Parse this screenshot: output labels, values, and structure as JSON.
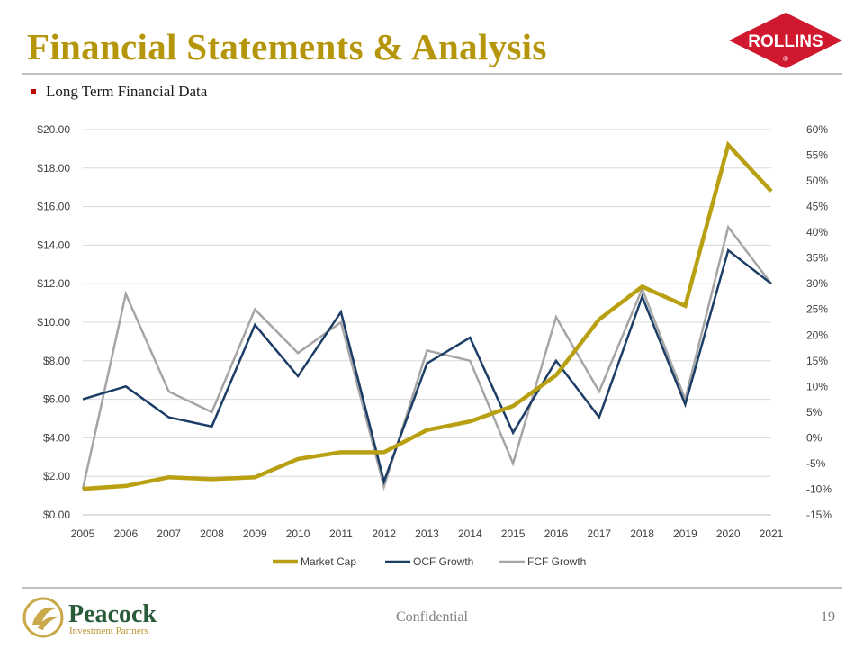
{
  "slide": {
    "title": "Financial Statements & Analysis",
    "bullet": "Long Term Financial Data",
    "logo_text": "ROLLINS",
    "logo_mark": "®",
    "footer_brand": "Peacock",
    "footer_brand_sub": "Investment Partners",
    "footer_center": "Confidential",
    "page_number": "19",
    "colors": {
      "title": "#b5950a",
      "logo_red": "#d0182f",
      "bullet": "#c00000"
    }
  },
  "chart_data": {
    "type": "line",
    "categories": [
      "2005",
      "2006",
      "2007",
      "2008",
      "2009",
      "2010",
      "2011",
      "2012",
      "2013",
      "2014",
      "2015",
      "2016",
      "2017",
      "2018",
      "2019",
      "2020",
      "2021"
    ],
    "y_left": {
      "range": [
        0,
        20
      ],
      "ticks": [
        0,
        2,
        4,
        6,
        8,
        10,
        12,
        14,
        16,
        18,
        20
      ],
      "tick_labels": [
        "$0.00",
        "$2.00",
        "$4.00",
        "$6.00",
        "$8.00",
        "$10.00",
        "$12.00",
        "$14.00",
        "$16.00",
        "$18.00",
        "$20.00"
      ]
    },
    "y_right": {
      "range": [
        -15,
        60
      ],
      "ticks": [
        -15,
        -10,
        -5,
        0,
        5,
        10,
        15,
        20,
        25,
        30,
        35,
        40,
        45,
        50,
        55,
        60
      ],
      "tick_labels": [
        "-15%",
        "-10%",
        "-5%",
        "0%",
        "5%",
        "10%",
        "15%",
        "20%",
        "25%",
        "30%",
        "35%",
        "40%",
        "45%",
        "50%",
        "55%",
        "60%"
      ]
    },
    "grid": true,
    "legend_position": "bottom",
    "series": [
      {
        "name": "Market Cap",
        "axis": "left",
        "color": "#b8a012",
        "width": 4.5,
        "values": [
          1.35,
          1.5,
          1.95,
          1.85,
          1.95,
          2.9,
          3.25,
          3.25,
          4.4,
          4.85,
          5.65,
          7.25,
          10.15,
          11.85,
          10.85,
          19.2,
          16.8
        ]
      },
      {
        "name": "OCF Growth",
        "axis": "right",
        "color": "#1b3d66",
        "width": 2.5,
        "values": [
          7.5,
          10.0,
          4.0,
          2.2,
          22.0,
          12.0,
          24.5,
          -8.5,
          14.5,
          19.5,
          1.0,
          15.0,
          4.0,
          27.5,
          6.5,
          36.5,
          30.0
        ]
      },
      {
        "name": "FCF Growth",
        "axis": "right",
        "color": "#a5a5a5",
        "width": 2.5,
        "values": [
          -10.0,
          28.0,
          9.0,
          5.0,
          25.0,
          16.5,
          22.5,
          -9.5,
          17.0,
          15.0,
          -5.0,
          23.5,
          9.0,
          29.0,
          7.5,
          41.0,
          30.0
        ]
      }
    ]
  }
}
